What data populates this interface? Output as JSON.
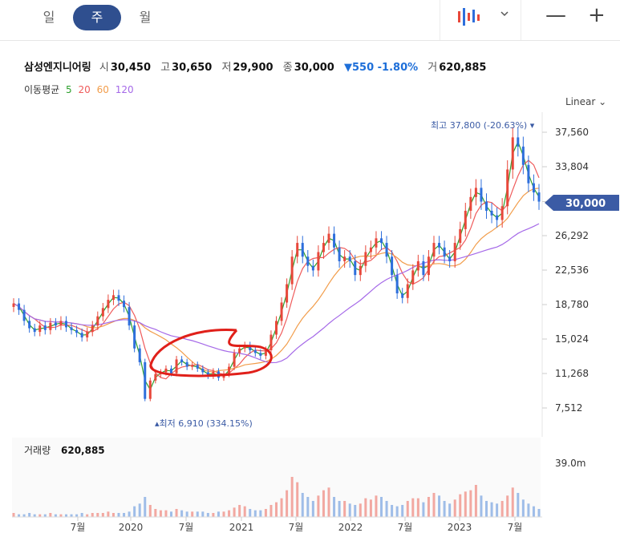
{
  "tabs": {
    "day": "일",
    "week": "주",
    "month": "월",
    "active": "week"
  },
  "quote": {
    "name": "삼성엔지니어링",
    "open_label": "시",
    "open": "30,450",
    "high_label": "고",
    "high": "30,650",
    "low_label": "저",
    "low": "29,900",
    "close_label": "종",
    "close": "30,000",
    "change": "▼550 -1.80%",
    "volume_label": "거",
    "volume": "620,885"
  },
  "ma_legend": {
    "label": "이동평균",
    "p5": "5",
    "p20": "20",
    "p60": "60",
    "p120": "120"
  },
  "scale_mode": "Linear ⌄",
  "colors": {
    "up": "#e8483b",
    "down": "#2e6fdc",
    "ma5": "#2ca02c",
    "ma20": "#ef5b5b",
    "ma60": "#f29d4b",
    "ma120": "#a569e8",
    "accent": "#2f4f8f",
    "price_tag": "#3b5ba5"
  },
  "chart_data": {
    "type": "candlestick",
    "y_ticks": [
      "37,560",
      "33,804",
      "30,000",
      "26,292",
      "22,536",
      "18,780",
      "15,024",
      "11,268",
      "7,512"
    ],
    "x_ticks": [
      "7월",
      "2020",
      "7월",
      "2021",
      "7월",
      "2022",
      "7월",
      "2023",
      "7월"
    ],
    "high_annotation": "최고 37,800 (-20.63%)",
    "low_annotation": "최저 6,910 (334.15%)",
    "last_price": "30,000",
    "volume_label": "거래량",
    "volume_value": "620,885",
    "volume_axis": "39.0m",
    "closes": [
      18900,
      18200,
      17000,
      16200,
      15800,
      16500,
      16000,
      16800,
      16500,
      17000,
      16300,
      16000,
      15700,
      15200,
      15800,
      16500,
      17500,
      18400,
      19300,
      19800,
      19200,
      18500,
      16500,
      14000,
      12500,
      8500,
      10500,
      11200,
      11400,
      11800,
      11300,
      12800,
      12500,
      12000,
      12200,
      11800,
      11400,
      11000,
      11500,
      10800,
      11200,
      12000,
      13500,
      14000,
      14300,
      13800,
      13500,
      13200,
      13800,
      15500,
      17000,
      19000,
      21000,
      24000,
      25500,
      24000,
      23000,
      22500,
      24500,
      25500,
      26500,
      25000,
      23500,
      24000,
      23500,
      22000,
      23000,
      24500,
      25000,
      26000,
      25500,
      24000,
      22000,
      20000,
      19500,
      21000,
      22500,
      23500,
      22000,
      24000,
      25500,
      25000,
      24000,
      23500,
      25500,
      27000,
      29000,
      30500,
      31500,
      30000,
      29000,
      28500,
      28000,
      29500,
      33500,
      37000,
      36000,
      34000,
      32000,
      31000,
      30000
    ],
    "volumes": [
      3,
      2,
      2,
      3,
      2,
      2,
      2,
      3,
      2,
      2,
      2,
      2,
      2,
      3,
      2,
      3,
      3,
      3,
      4,
      3,
      3,
      3,
      4,
      8,
      10,
      15,
      9,
      6,
      5,
      5,
      4,
      6,
      5,
      4,
      4,
      4,
      4,
      3,
      3,
      4,
      4,
      5,
      7,
      9,
      8,
      6,
      5,
      5,
      6,
      9,
      11,
      14,
      20,
      30,
      26,
      18,
      15,
      12,
      16,
      20,
      22,
      15,
      12,
      12,
      10,
      9,
      10,
      14,
      13,
      16,
      15,
      12,
      9,
      8,
      9,
      12,
      14,
      14,
      11,
      15,
      18,
      16,
      12,
      10,
      13,
      17,
      19,
      20,
      24,
      16,
      12,
      11,
      10,
      12,
      16,
      22,
      18,
      13,
      10,
      8,
      6
    ]
  }
}
